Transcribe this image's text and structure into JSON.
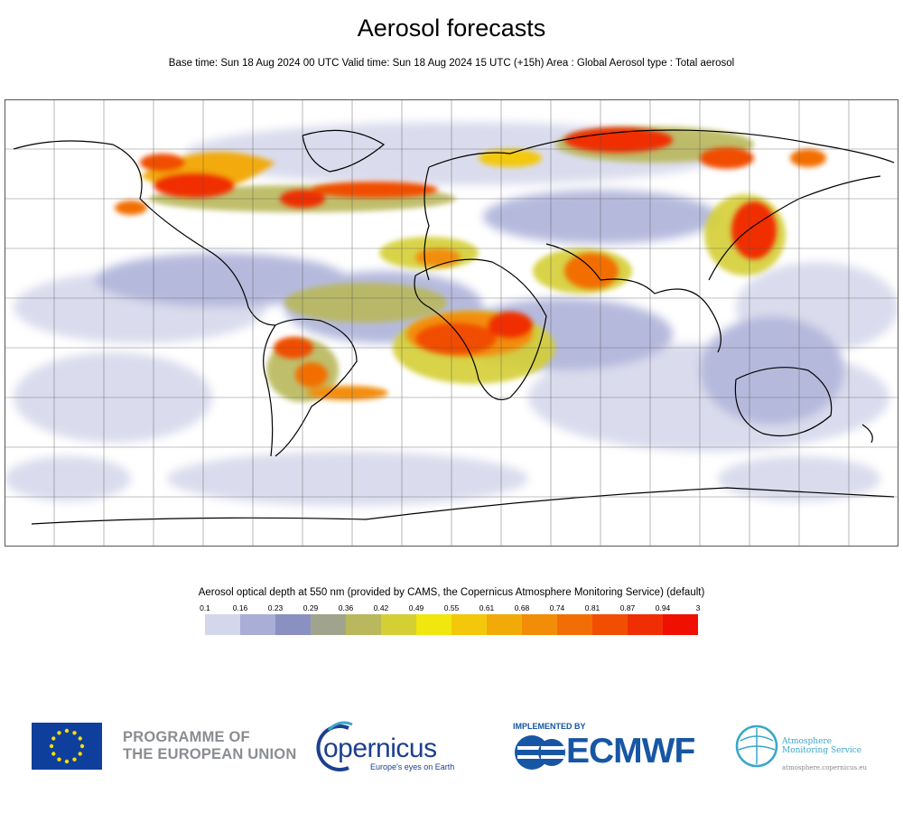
{
  "header": {
    "title": "Aerosol forecasts",
    "subtitle": "Base time: Sun 18 Aug 2024 00 UTC Valid time: Sun 18 Aug 2024 15 UTC (+15h) Area : Global Aerosol type : Total aerosol"
  },
  "map": {
    "field": "aerosol optical depth",
    "plume_regions": [
      "Canada",
      "Siberia",
      "West Africa",
      "Central Africa",
      "South America",
      "Arabian Peninsula",
      "East China"
    ]
  },
  "legend": {
    "title": "Aerosol optical depth at 550 nm (provided by CAMS, the Copernicus Atmosphere Monitoring Service) (default)",
    "ticks": [
      "0.1",
      "0.16",
      "0.23",
      "0.29",
      "0.36",
      "0.42",
      "0.49",
      "0.55",
      "0.61",
      "0.68",
      "0.74",
      "0.81",
      "0.87",
      "0.94",
      "3"
    ],
    "colors": [
      "#d4d6ea",
      "#a9aed7",
      "#8a91c1",
      "#a1a48c",
      "#b9b85c",
      "#d4cf34",
      "#efe70e",
      "#f3c80a",
      "#f2aa09",
      "#f38d07",
      "#f26e05",
      "#f14e04",
      "#f02e03",
      "#ef1002"
    ]
  },
  "footer": {
    "eu_line1": "PROGRAMME OF",
    "eu_line2": "THE EUROPEAN UNION",
    "copernicus_word": "opernicus",
    "copernicus_tagline": "Europe's eyes on Earth",
    "implemented_by": "IMPLEMENTED BY",
    "ecmwf": "ECMWF",
    "ams_line1": "Atmosphere",
    "ams_line2": "Monitoring Service",
    "ams_url": "atmosphere.copernicus.eu"
  }
}
